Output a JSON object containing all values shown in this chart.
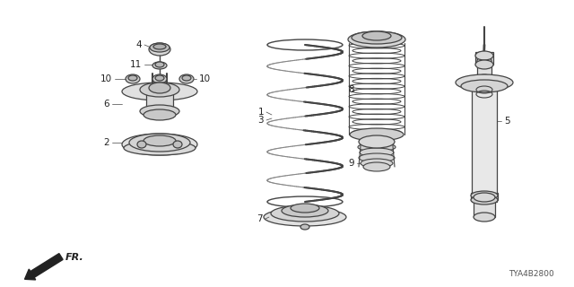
{
  "background_color": "#ffffff",
  "watermark": "TYA4B2800",
  "line_color": "#444444",
  "line_color_light": "#888888"
}
